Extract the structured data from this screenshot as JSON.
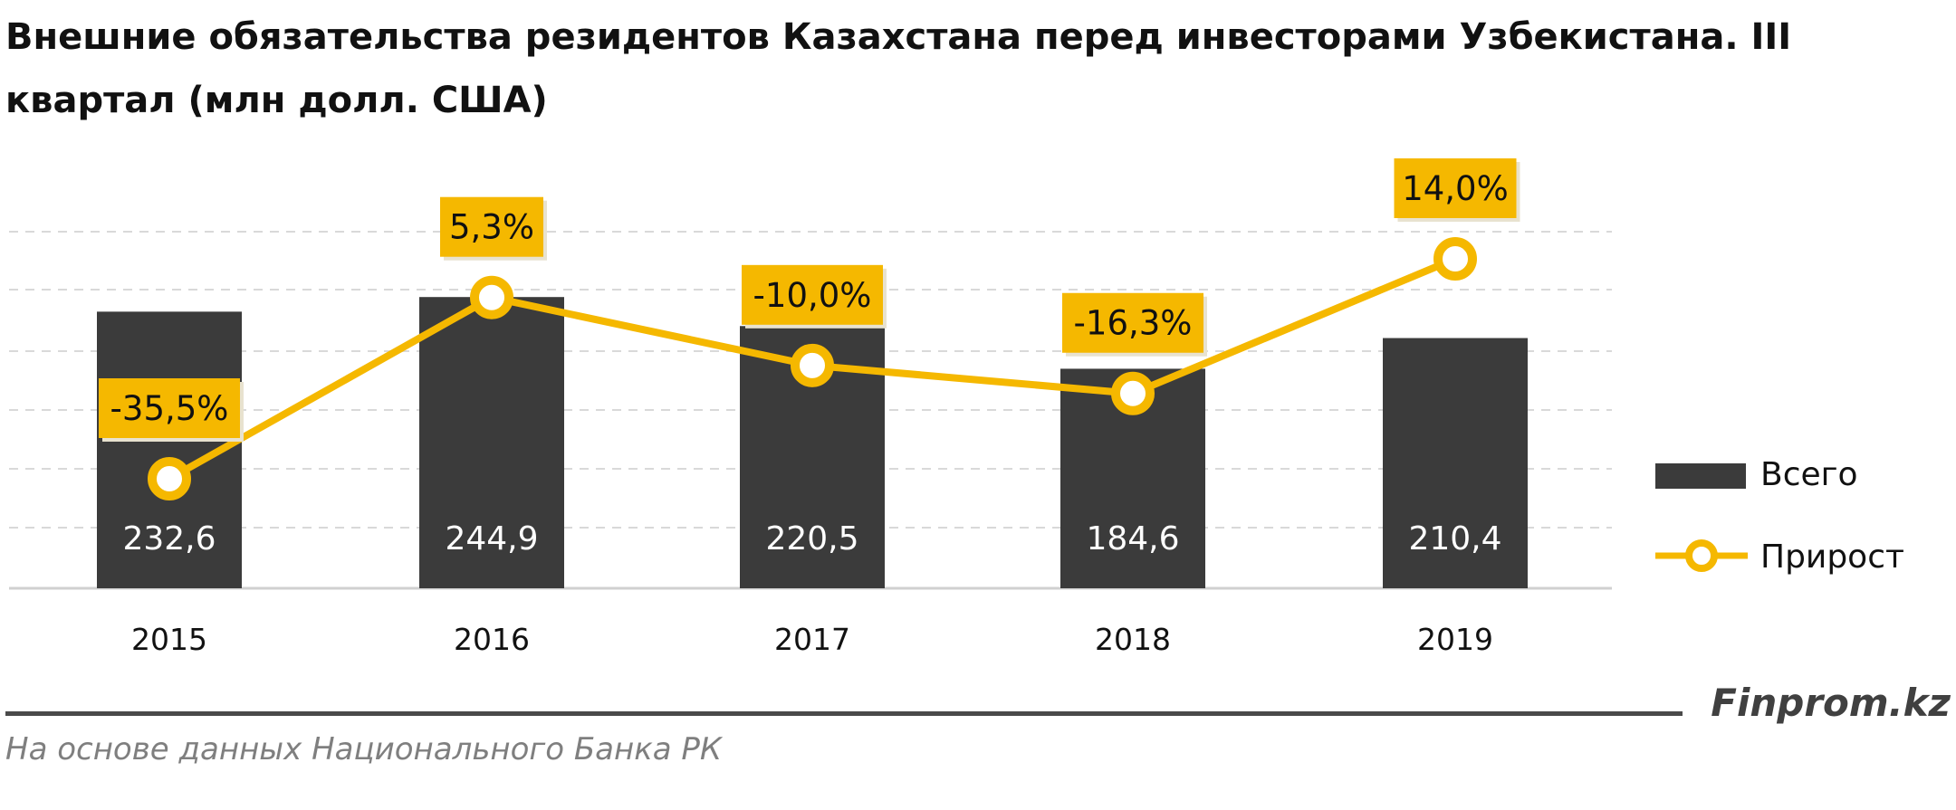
{
  "title": "Внешние обязательства резидентов Казахстана перед инвесторами Узбекистана. III квартал (млн долл. США)",
  "source": "На основе данных Национального Банка РК",
  "brand": "Finprom.kz",
  "colors": {
    "bar": "#3b3b3b",
    "line": "#f5b800",
    "label_bg": "#f5b800",
    "grid": "#d9d9d9"
  },
  "chart_data": {
    "type": "bar",
    "categories": [
      "2015",
      "2016",
      "2017",
      "2018",
      "2019"
    ],
    "series": [
      {
        "name": "Всего",
        "type": "bar",
        "values": [
          232.6,
          244.9,
          220.5,
          184.6,
          210.4
        ],
        "labels": [
          "232,6",
          "244,9",
          "220,5",
          "184,6",
          "210,4"
        ]
      },
      {
        "name": "Прирост",
        "type": "line",
        "values": [
          -35.5,
          5.3,
          -10.0,
          -16.3,
          14.0
        ],
        "labels": [
          "-35,5%",
          "5,3%",
          "-10,0%",
          "-16,3%",
          "14,0%"
        ]
      }
    ],
    "grid": true,
    "legend": "right"
  }
}
